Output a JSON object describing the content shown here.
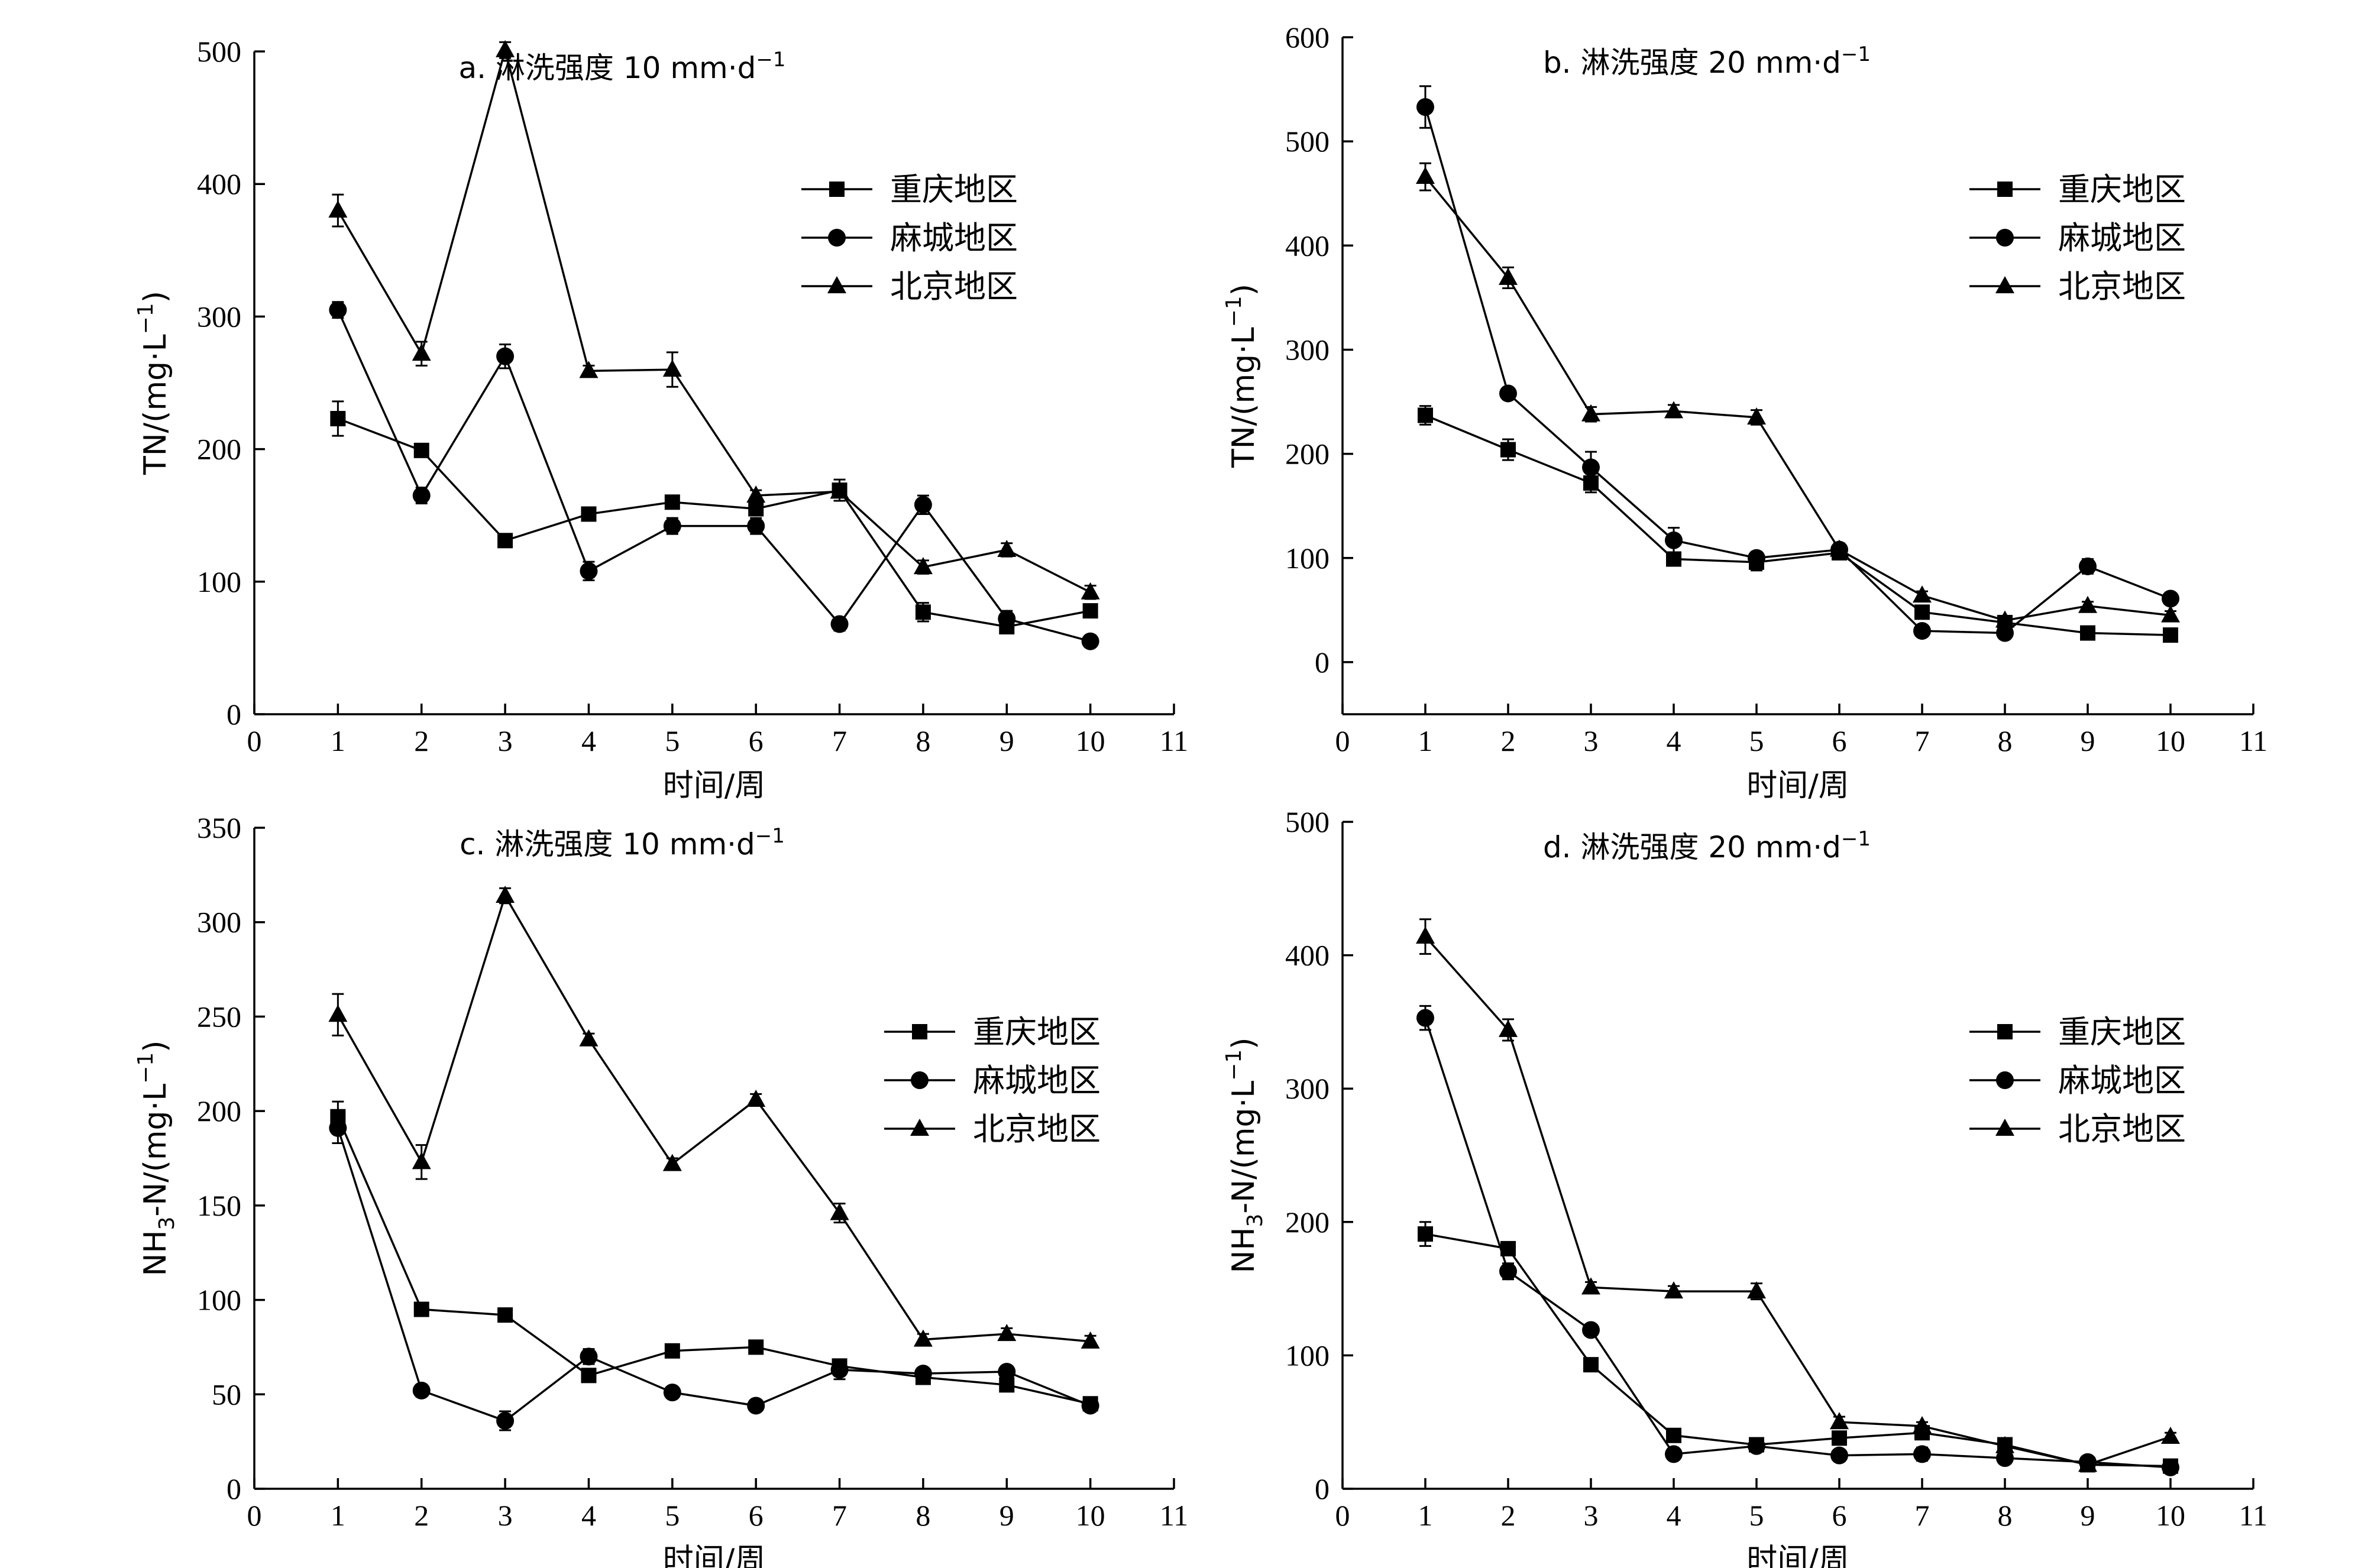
{
  "chart_data": [
    {
      "type": "line",
      "title": "a. 淋洗强度 10 mm·d",
      "title_sup": "−1",
      "xlabel": "时间/周",
      "ylabel": "TN/(mg·L",
      "ylabel_sup": "−1",
      "ylabel_tail": ")",
      "xlim": [
        0,
        11
      ],
      "ylim": [
        0,
        500
      ],
      "xticks": [
        0,
        1,
        2,
        3,
        4,
        5,
        6,
        7,
        8,
        9,
        10,
        11
      ],
      "yticks": [
        0,
        100,
        200,
        300,
        400,
        500
      ],
      "legend_position": "right",
      "x": [
        1,
        2,
        3,
        4,
        5,
        6,
        7,
        8,
        9,
        10
      ],
      "series": [
        {
          "name": "重庆地区",
          "marker": "square",
          "values": [
            223,
            199,
            131,
            151,
            160,
            155,
            169,
            77,
            66,
            78
          ],
          "errors": [
            13,
            4,
            3,
            4,
            4,
            4,
            8,
            7,
            4,
            3
          ]
        },
        {
          "name": "麻城地区",
          "marker": "circle",
          "values": [
            305,
            165,
            270,
            108,
            142,
            142,
            68,
            158,
            72,
            55
          ],
          "errors": [
            6,
            6,
            9,
            7,
            6,
            6,
            5,
            7,
            6,
            4
          ]
        },
        {
          "name": "北京地区",
          "marker": "triangle",
          "values": [
            380,
            272,
            501,
            259,
            260,
            165,
            168,
            111,
            124,
            92
          ],
          "errors": [
            12,
            9,
            6,
            4,
            13,
            4,
            4,
            5,
            5,
            5
          ]
        }
      ]
    },
    {
      "type": "line",
      "title": "b. 淋洗强度 20 mm·d",
      "title_sup": "−1",
      "xlabel": "时间/周",
      "ylabel": "TN/(mg·L",
      "ylabel_sup": "−1",
      "ylabel_tail": ")",
      "xlim": [
        0,
        11
      ],
      "ylim": [
        -50,
        600
      ],
      "xticks": [
        0,
        1,
        2,
        3,
        4,
        5,
        6,
        7,
        8,
        9,
        10,
        11
      ],
      "yticks": [
        0,
        100,
        200,
        300,
        400,
        500,
        600
      ],
      "legend_position": "right",
      "x": [
        1,
        2,
        3,
        4,
        5,
        6,
        7,
        8,
        9,
        10
      ],
      "series": [
        {
          "name": "重庆地区",
          "marker": "square",
          "values": [
            237,
            204,
            172,
            99,
            96,
            105,
            48,
            38,
            28,
            26
          ],
          "errors": [
            9,
            10,
            9,
            4,
            8,
            5,
            4,
            3,
            3,
            3
          ]
        },
        {
          "name": "麻城地区",
          "marker": "circle",
          "values": [
            533,
            258,
            187,
            117,
            100,
            108,
            30,
            28,
            92,
            61
          ],
          "errors": [
            20,
            5,
            15,
            12,
            6,
            6,
            4,
            5,
            7,
            5
          ]
        },
        {
          "name": "北京地区",
          "marker": "triangle",
          "values": [
            466,
            369,
            238,
            241,
            235,
            108,
            64,
            40,
            54,
            45
          ],
          "errors": [
            13,
            10,
            7,
            6,
            7,
            5,
            4,
            3,
            4,
            4
          ]
        }
      ]
    },
    {
      "type": "line",
      "title": "c. 淋洗强度 10 mm·d",
      "title_sup": "−1",
      "xlabel": "时间/周",
      "ylabel": "NH",
      "ylabel_sub": "3",
      "ylabel_mid": "-N/(mg·L",
      "ylabel_sup": "−1",
      "ylabel_tail": ")",
      "xlim": [
        0,
        11
      ],
      "ylim": [
        0,
        350
      ],
      "xticks": [
        0,
        1,
        2,
        3,
        4,
        5,
        6,
        7,
        8,
        9,
        10,
        11
      ],
      "yticks": [
        0,
        50,
        100,
        150,
        200,
        250,
        300,
        350
      ],
      "legend_position": "right",
      "x": [
        1,
        2,
        3,
        4,
        5,
        6,
        7,
        8,
        9,
        10
      ],
      "series": [
        {
          "name": "重庆地区",
          "marker": "square",
          "values": [
            197,
            95,
            92,
            60,
            73,
            75,
            65,
            59,
            55,
            45
          ],
          "errors": [
            8,
            3,
            3,
            3,
            3,
            3,
            3,
            3,
            3,
            3
          ]
        },
        {
          "name": "麻城地区",
          "marker": "circle",
          "values": [
            191,
            52,
            36,
            70,
            51,
            44,
            63,
            61,
            62,
            44
          ],
          "errors": [
            8,
            3,
            5,
            4,
            3,
            3,
            5,
            3,
            3,
            3
          ]
        },
        {
          "name": "北京地区",
          "marker": "triangle",
          "values": [
            251,
            173,
            314,
            238,
            172,
            206,
            146,
            79,
            82,
            78
          ],
          "errors": [
            11,
            9,
            4,
            3,
            3,
            3,
            5,
            3,
            3,
            3
          ]
        }
      ]
    },
    {
      "type": "line",
      "title": "d. 淋洗强度 20 mm·d",
      "title_sup": "−1",
      "xlabel": "时间/周",
      "ylabel": "NH",
      "ylabel_sub": "3",
      "ylabel_mid": "-N/(mg·L",
      "ylabel_sup": "−1",
      "ylabel_tail": ")",
      "xlim": [
        0,
        11
      ],
      "ylim": [
        0,
        500
      ],
      "xticks": [
        0,
        1,
        2,
        3,
        4,
        5,
        6,
        7,
        8,
        9,
        10,
        11
      ],
      "yticks": [
        0,
        100,
        200,
        300,
        400,
        500
      ],
      "legend_position": "right",
      "x": [
        1,
        2,
        3,
        4,
        5,
        6,
        7,
        8,
        9,
        10
      ],
      "series": [
        {
          "name": "重庆地区",
          "marker": "square",
          "values": [
            191,
            180,
            93,
            40,
            33,
            38,
            42,
            33,
            18,
            17
          ],
          "errors": [
            9,
            5,
            4,
            3,
            4,
            3,
            3,
            3,
            3,
            3
          ]
        },
        {
          "name": "麻城地区",
          "marker": "circle",
          "values": [
            353,
            163,
            119,
            26,
            32,
            25,
            26,
            23,
            20,
            16
          ],
          "errors": [
            9,
            6,
            4,
            3,
            4,
            3,
            5,
            3,
            3,
            3
          ]
        },
        {
          "name": "北京地区",
          "marker": "triangle",
          "values": [
            414,
            344,
            151,
            148,
            148,
            50,
            47,
            32,
            18,
            39
          ],
          "errors": [
            13,
            8,
            4,
            4,
            6,
            4,
            3,
            3,
            3,
            3
          ]
        }
      ]
    }
  ]
}
